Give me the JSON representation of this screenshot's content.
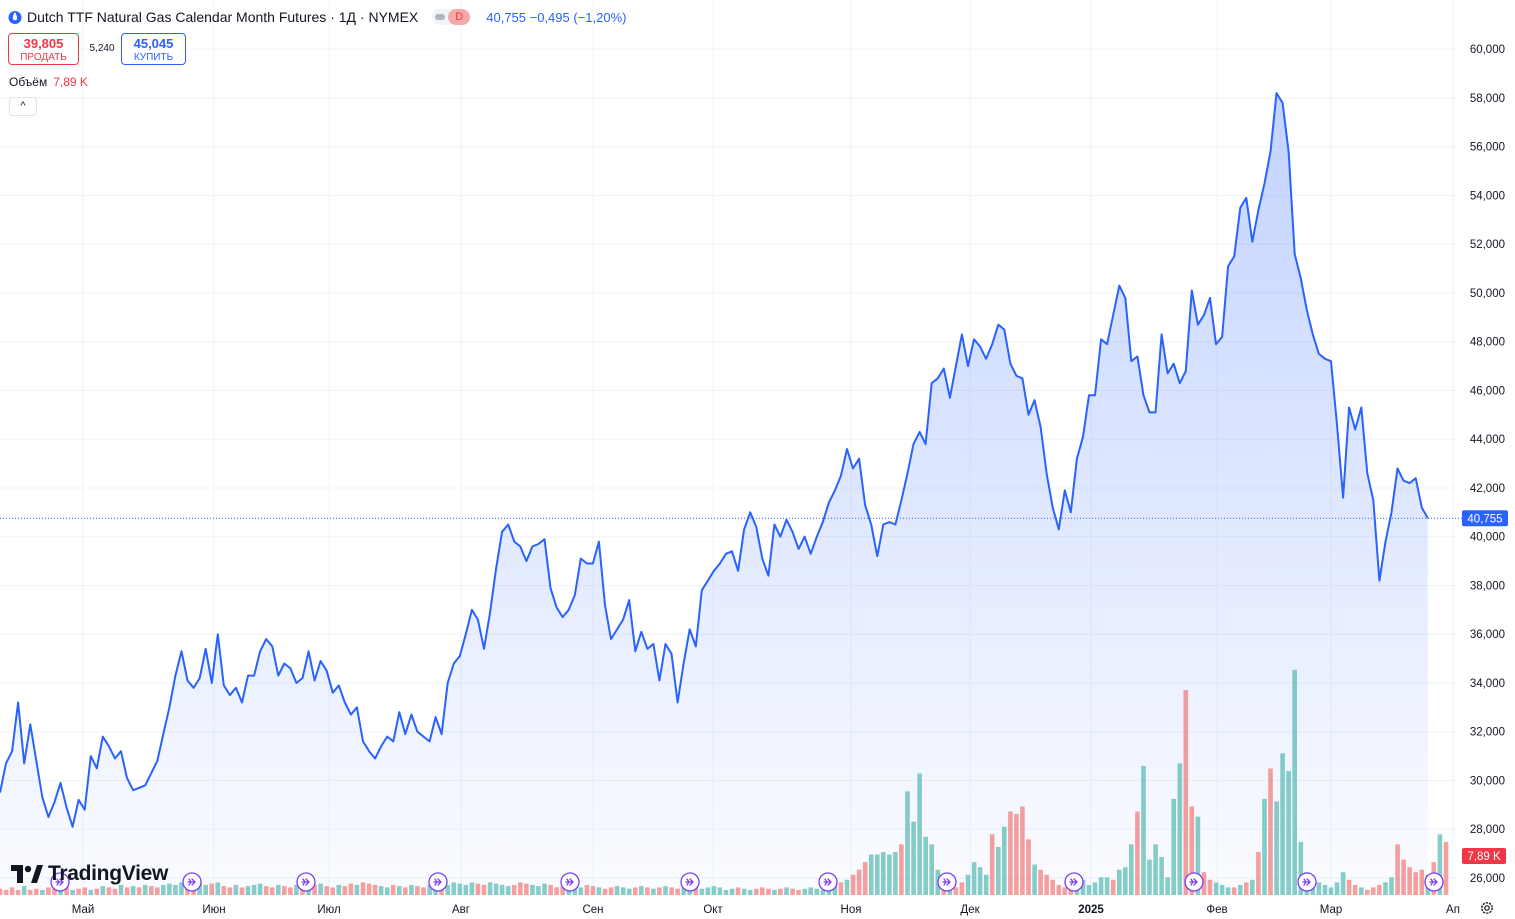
{
  "header": {
    "title": "Dutch TTF Natural Gas Calendar Month Futures · 1Д · NYMEX",
    "mode_letter": "D",
    "price_line": "40,755 −0,495 (−1,20%)"
  },
  "trade": {
    "sell_value": "39,805",
    "sell_label": "ПРОДАТЬ",
    "spread": "5,240",
    "buy_value": "45,045",
    "buy_label": "КУПИТЬ"
  },
  "volume_legend": {
    "label": "Объём",
    "value": "7,89 K"
  },
  "collapse_label": "^",
  "branding": {
    "name": "TradingView"
  },
  "chart_data": {
    "type": "area",
    "instrument": "Dutch TTF Natural Gas Calendar Month Futures",
    "timeframe": "1Д",
    "exchange": "NYMEX",
    "x_ticks": [
      "Май",
      "Июн",
      "Июл",
      "Авг",
      "Сен",
      "Окт",
      "Ноя",
      "Дек",
      "2025",
      "Фев",
      "Мар",
      "Ап"
    ],
    "y_ticks": [
      "26,000",
      "28,000",
      "30,000",
      "32,000",
      "34,000",
      "36,000",
      "38,000",
      "40,000",
      "42,000",
      "44,000",
      "46,000",
      "48,000",
      "50,000",
      "52,000",
      "54,000",
      "56,000",
      "58,000",
      "60,000"
    ],
    "ylim": [
      25.3,
      61.2
    ],
    "last_price_label": "40,755",
    "last_price": 40.755,
    "last_volume_label": "7,89 K",
    "colors": {
      "line": "#2962ff",
      "area": "#2962ff",
      "volume_up": "#26a69a",
      "volume_down": "#ef5350",
      "grid": "#f0f3fa"
    },
    "series": [
      {
        "values": [
          29.5,
          30.7,
          31.2,
          33.2,
          30.7,
          32.3,
          30.8,
          29.3,
          28.5,
          29.1,
          29.9,
          28.9,
          28.1,
          29.2,
          28.8,
          31.0,
          30.5,
          31.8,
          31.4,
          30.9,
          31.2,
          30.1,
          29.6,
          29.7,
          29.8,
          30.3,
          30.8,
          31.9,
          33.0,
          34.3,
          35.3,
          34.1,
          33.8,
          34.2,
          35.4,
          34.0,
          36.0,
          33.9,
          33.5,
          33.8,
          33.2,
          34.3,
          34.3,
          35.3,
          35.8,
          35.5,
          34.3,
          34.8,
          34.6,
          34.0,
          34.2,
          35.3,
          34.1,
          34.9,
          34.5,
          33.6,
          33.9,
          33.2,
          32.7,
          33.0,
          31.6,
          31.2,
          30.9,
          31.4,
          31.8,
          31.6,
          32.8,
          31.9,
          32.7,
          32.0,
          31.8,
          31.6,
          32.6,
          31.9,
          34.0,
          34.8,
          35.1,
          36.0,
          37.0,
          36.6,
          35.4,
          36.9,
          38.7,
          40.2,
          40.5,
          39.8,
          39.6,
          39.0,
          39.6,
          39.7,
          39.9,
          37.9,
          37.1,
          36.7,
          37.0,
          37.6,
          39.1,
          38.9,
          38.9,
          39.8,
          37.2,
          35.8,
          36.2,
          36.6,
          37.4,
          35.3,
          36.1,
          35.4,
          35.6,
          34.1,
          35.6,
          35.2,
          33.2,
          34.8,
          36.2,
          35.5,
          37.8,
          38.2,
          38.6,
          38.9,
          39.3,
          39.4,
          38.6,
          40.3,
          41.0,
          40.4,
          39.1,
          38.4,
          40.5,
          40.0,
          40.7,
          40.2,
          39.5,
          40.0,
          39.3,
          40.0,
          40.6,
          41.4,
          41.9,
          42.5,
          43.6,
          42.8,
          43.2,
          41.3,
          40.5,
          39.2,
          40.5,
          40.6,
          40.5,
          41.5,
          42.6,
          43.8,
          44.3,
          43.8,
          46.3,
          46.5,
          46.9,
          45.7,
          47.0,
          48.3,
          47.0,
          48.1,
          47.8,
          47.3,
          47.9,
          48.7,
          48.5,
          47.1,
          46.6,
          46.5,
          45.0,
          45.6,
          44.5,
          42.6,
          41.2,
          40.3,
          41.9,
          41.0,
          43.2,
          44.1,
          45.8,
          45.8,
          48.1,
          47.9,
          49.1,
          50.3,
          49.8,
          47.2,
          47.4,
          45.8,
          45.1,
          45.1,
          48.3,
          46.7,
          47.1,
          46.3,
          46.8,
          50.1,
          48.7,
          49.1,
          49.8,
          47.9,
          48.2,
          51.1,
          51.5,
          53.5,
          53.9,
          52.1,
          53.4,
          54.5,
          55.8,
          58.2,
          57.8,
          55.8,
          51.6,
          50.6,
          49.3,
          48.3,
          47.5,
          47.3,
          47.2,
          44.6,
          41.6,
          45.3,
          44.4,
          45.3,
          42.6,
          41.5,
          38.2,
          39.8,
          41.0,
          42.8,
          42.3,
          42.2,
          42.4,
          41.2,
          40.755
        ]
      }
    ],
    "volume": {
      "values": [
        0.25,
        0.2,
        0.3,
        0.2,
        0.35,
        0.2,
        0.25,
        0.2,
        0.3,
        0.25,
        0.2,
        0.3,
        0.2,
        0.25,
        0.3,
        0.2,
        0.25,
        0.35,
        0.3,
        0.25,
        0.4,
        0.3,
        0.35,
        0.3,
        0.4,
        0.35,
        0.3,
        0.4,
        0.45,
        0.4,
        0.5,
        0.45,
        0.4,
        0.5,
        0.4,
        0.45,
        0.5,
        0.35,
        0.3,
        0.4,
        0.3,
        0.35,
        0.4,
        0.45,
        0.35,
        0.3,
        0.4,
        0.35,
        0.3,
        0.4,
        0.35,
        0.3,
        0.4,
        0.45,
        0.35,
        0.3,
        0.4,
        0.35,
        0.45,
        0.4,
        0.5,
        0.45,
        0.4,
        0.35,
        0.3,
        0.4,
        0.35,
        0.3,
        0.4,
        0.35,
        0.3,
        0.4,
        0.35,
        0.3,
        0.4,
        0.5,
        0.45,
        0.4,
        0.5,
        0.45,
        0.4,
        0.5,
        0.45,
        0.4,
        0.35,
        0.4,
        0.5,
        0.45,
        0.4,
        0.35,
        0.45,
        0.4,
        0.3,
        0.35,
        0.4,
        0.35,
        0.3,
        0.4,
        0.35,
        0.3,
        0.25,
        0.3,
        0.35,
        0.3,
        0.25,
        0.3,
        0.35,
        0.3,
        0.25,
        0.3,
        0.35,
        0.3,
        0.25,
        0.3,
        0.35,
        0.3,
        0.25,
        0.3,
        0.35,
        0.3,
        0.2,
        0.25,
        0.3,
        0.25,
        0.2,
        0.25,
        0.3,
        0.25,
        0.2,
        0.25,
        0.3,
        0.25,
        0.2,
        0.25,
        0.3,
        0.25,
        0.2,
        0.3,
        0.4,
        0.5,
        0.6,
        0.8,
        1.0,
        1.3,
        1.6,
        1.6,
        1.7,
        1.6,
        1.7,
        2.0,
        4.1,
        2.9,
        4.8,
        2.3,
        2.0,
        1.0,
        0.8,
        0.4,
        0.3,
        0.5,
        0.8,
        1.3,
        1.1,
        0.8,
        2.4,
        1.9,
        2.7,
        3.3,
        3.2,
        3.5,
        2.2,
        1.2,
        1.0,
        0.8,
        0.6,
        0.4,
        0.3,
        0.3,
        0.5,
        0.6,
        0.4,
        0.5,
        0.7,
        0.7,
        0.6,
        1.0,
        1.1,
        2.0,
        3.3,
        5.1,
        1.4,
        2.0,
        1.5,
        0.7,
        3.8,
        5.2,
        8.1,
        3.5,
        3.1,
        0.9,
        0.6,
        0.5,
        0.4,
        0.3,
        0.3,
        0.4,
        0.5,
        0.6,
        1.7,
        3.8,
        5.0,
        3.7,
        5.6,
        4.9,
        8.9,
        2.1,
        0.9,
        0.6,
        0.5,
        0.4,
        0.3,
        0.5,
        0.9,
        0.6,
        0.4,
        0.3,
        0.2,
        0.3,
        0.4,
        0.5,
        0.7,
        2.0,
        1.4,
        1.1,
        0.9,
        1.0,
        0.8,
        1.3,
        2.4,
        2.1
      ],
      "colors": [
        "d",
        "d",
        "d",
        "d",
        "u",
        "d",
        "d",
        "u",
        "d",
        "d",
        "u",
        "d",
        "u",
        "d",
        "d",
        "u",
        "d",
        "u",
        "d",
        "d",
        "u",
        "d",
        "u",
        "d",
        "u",
        "d",
        "d",
        "u",
        "u",
        "u",
        "u",
        "d",
        "d",
        "u",
        "u",
        "d",
        "u",
        "d",
        "d",
        "u",
        "d",
        "u",
        "u",
        "u",
        "d",
        "d",
        "u",
        "d",
        "d",
        "u",
        "d",
        "u",
        "d",
        "u",
        "d",
        "d",
        "u",
        "d",
        "d",
        "u",
        "d",
        "d",
        "d",
        "u",
        "u",
        "d",
        "u",
        "d",
        "u",
        "d",
        "d",
        "u",
        "u",
        "d",
        "u",
        "u",
        "u",
        "u",
        "u",
        "d",
        "d",
        "u",
        "u",
        "u",
        "u",
        "d",
        "d",
        "d",
        "u",
        "u",
        "u",
        "d",
        "d",
        "d",
        "u",
        "u",
        "u",
        "d",
        "d",
        "u",
        "d",
        "d",
        "u",
        "u",
        "u",
        "d",
        "u",
        "d",
        "u",
        "d",
        "u",
        "d",
        "d",
        "u",
        "u",
        "d",
        "u",
        "u",
        "u",
        "u",
        "u",
        "u",
        "d",
        "u",
        "u",
        "d",
        "d",
        "d",
        "u",
        "d",
        "u",
        "d",
        "d",
        "u",
        "u",
        "u",
        "u",
        "u",
        "u",
        "d",
        "u",
        "d",
        "d",
        "d",
        "u",
        "u",
        "u",
        "u",
        "u",
        "d",
        "u",
        "u",
        "u",
        "u",
        "u",
        "u",
        "d",
        "u",
        "d",
        "d",
        "u",
        "u",
        "u",
        "u",
        "d",
        "u",
        "u",
        "d",
        "d",
        "d",
        "d",
        "u",
        "d",
        "d",
        "d",
        "d",
        "d",
        "d",
        "u",
        "u",
        "u",
        "u",
        "u",
        "u",
        "d",
        "u",
        "u",
        "u",
        "d",
        "u",
        "u",
        "u",
        "u",
        "u",
        "u",
        "u",
        "d",
        "d",
        "u",
        "d",
        "d",
        "u",
        "u",
        "u",
        "d",
        "u",
        "d",
        "u",
        "d",
        "u",
        "d",
        "u",
        "u",
        "u",
        "u",
        "u",
        "u",
        "u",
        "u",
        "u",
        "u",
        "u",
        "u",
        "d",
        "d",
        "u",
        "d",
        "d",
        "d",
        "u",
        "u",
        "d",
        "d",
        "d",
        "d",
        "d",
        "u",
        "d",
        "u",
        "d",
        "d",
        "d",
        "u",
        "u",
        "u",
        "d",
        "u",
        "d",
        "u",
        "d",
        "d",
        "u",
        "d",
        "d",
        "u",
        "u",
        "u",
        "u",
        "d",
        "u",
        "d",
        "u",
        "d",
        "d"
      ]
    }
  }
}
